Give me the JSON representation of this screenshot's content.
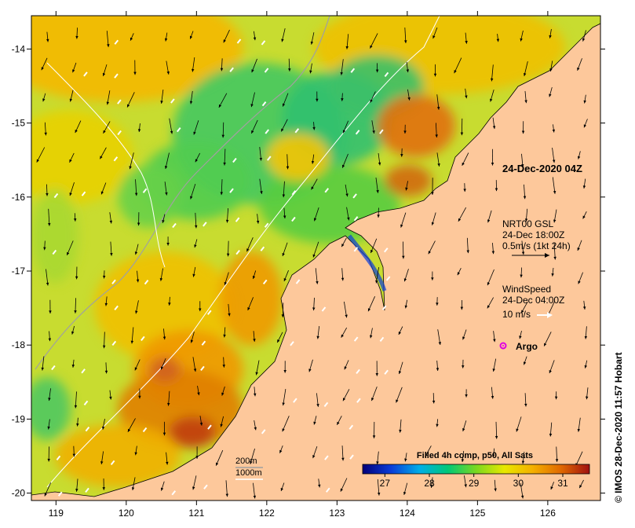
{
  "map": {
    "x_ticks": [
      "119",
      "120",
      "121",
      "122",
      "123",
      "124",
      "125",
      "126"
    ],
    "y_ticks": [
      "-14",
      "-15",
      "-16",
      "-17",
      "-18",
      "-19",
      "-20"
    ],
    "x_range": [
      118.65,
      126.75
    ],
    "y_range": [
      -20.1,
      -13.55
    ]
  },
  "annotations": {
    "title_time": "24-Dec-2020 04Z",
    "current_product": "NRT00 GSL",
    "current_time": "24-Dec 18:00Z",
    "current_scale": "0.5m/s (1kt 24h)",
    "wind_title": "WindSpeed",
    "wind_time": "24-Dec 04:00Z",
    "wind_scale": "10 m/s",
    "argo_label": "Argo",
    "contour_200": "200m",
    "contour_1000": "1000m"
  },
  "colorbar": {
    "title": "Filled 4h comp, p50, All Sats",
    "labels": [
      "27",
      "28",
      "29",
      "30",
      "31"
    ],
    "range": [
      26.5,
      31.6
    ],
    "colors": [
      "#00007a",
      "#0a3cd8",
      "#00aee8",
      "#00c878",
      "#7ad820",
      "#e8e800",
      "#f4b000",
      "#e06800",
      "#a01010"
    ]
  },
  "credit": "© IMOS 28-Dec-2020 11:57 Hobart",
  "colors": {
    "land": "#fdc89b",
    "coast": "#000000",
    "contour": "#ffffff",
    "bathy_grey": "#a0a0a0",
    "argo": "#e000e0"
  }
}
